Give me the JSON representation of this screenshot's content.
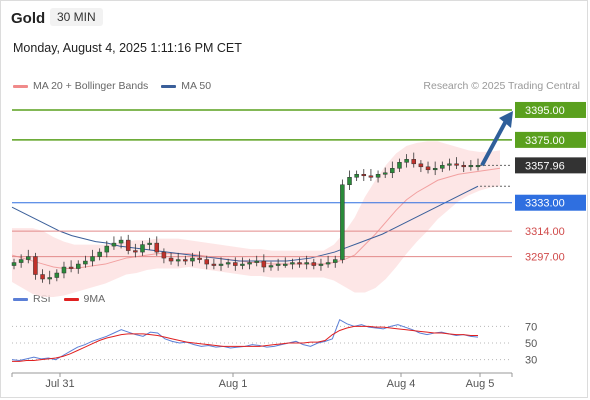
{
  "header": {
    "instrument": "Gold",
    "timeframe": "30 MIN",
    "datetime": "Monday, August 4, 2025 1:11:16 PM CET"
  },
  "legend_main": [
    {
      "label": "MA 20 + Bollinger Bands",
      "color": "#f08a8a"
    },
    {
      "label": "MA 50",
      "color": "#3a5f9a"
    }
  ],
  "legend_rsi": [
    {
      "label": "RSI",
      "color": "#5b7fd6"
    },
    {
      "label": "9MA",
      "color": "#e02020"
    }
  ],
  "credit": "Research © 2025 Trading Central",
  "colors": {
    "target": "#5aa01e",
    "pivot": "#2f6fe0",
    "support": "#d04a4a",
    "current": "#333333",
    "candle_up": "#2a8a3a",
    "candle_down": "#c0312b",
    "band_fill": "#fde2e2",
    "arrow": "#2f5f9a"
  },
  "chart_data": [
    {
      "type": "candlestick",
      "instrument": "Gold",
      "interval": "30 MIN",
      "ylim": [
        3280,
        3405
      ],
      "x_ticks": [
        "Jul 31",
        "Aug 1",
        "Aug 4",
        "Aug 5"
      ],
      "price_closes": [
        3293,
        3295,
        3297,
        3285,
        3282,
        3283,
        3286,
        3290,
        3289,
        3292,
        3294,
        3297,
        3300,
        3304,
        3306,
        3308,
        3301,
        3300,
        3305,
        3306,
        3300,
        3296,
        3294,
        3295,
        3294,
        3296,
        3295,
        3292,
        3291,
        3292,
        3293,
        3291,
        3292,
        3293,
        3294,
        3290,
        3291,
        3292,
        3292,
        3293,
        3292,
        3293,
        3291,
        3292,
        3293,
        3295,
        3345,
        3350,
        3352,
        3351,
        3350,
        3352,
        3353,
        3356,
        3360,
        3362,
        3359,
        3357,
        3355,
        3356,
        3358,
        3359,
        3358,
        3357,
        3358,
        3358
      ],
      "ma20": [
        3298,
        3296,
        3294,
        3292,
        3290,
        3289,
        3289,
        3290,
        3291,
        3292,
        3294,
        3296,
        3297,
        3298,
        3299,
        3299,
        3299,
        3299,
        3298,
        3297,
        3296,
        3295,
        3294,
        3293,
        3293,
        3292,
        3292,
        3292,
        3292,
        3292,
        3292,
        3293,
        3295,
        3298,
        3305,
        3312,
        3320,
        3328,
        3335,
        3340,
        3344,
        3348,
        3350,
        3352,
        3353,
        3354,
        3355,
        3356
      ],
      "ma50": [
        3330,
        3326,
        3322,
        3318,
        3314,
        3311,
        3309,
        3307,
        3306,
        3304,
        3303,
        3302,
        3301,
        3300,
        3299,
        3298,
        3297,
        3296,
        3295,
        3294,
        3294,
        3294,
        3294,
        3294,
        3295,
        3296,
        3298,
        3300,
        3303,
        3306,
        3309,
        3312,
        3316,
        3320,
        3324,
        3328,
        3332,
        3336,
        3340,
        3344
      ],
      "levels": [
        {
          "price": "3395.00",
          "value": 3395,
          "kind": "target"
        },
        {
          "price": "3375.00",
          "value": 3375,
          "kind": "target"
        },
        {
          "price": "3357.96",
          "value": 3357.96,
          "kind": "current"
        },
        {
          "price": "3333.00",
          "value": 3333,
          "kind": "pivot"
        },
        {
          "price": "3314.00",
          "value": 3314,
          "kind": "support"
        },
        {
          "price": "3297.00",
          "value": 3297,
          "kind": "support"
        }
      ],
      "legend": [
        "MA 20 + Bollinger Bands",
        "MA 50"
      ]
    },
    {
      "type": "line",
      "name": "RSI",
      "ylim": [
        20,
        80
      ],
      "y_ticks": [
        70,
        50,
        30
      ],
      "series": [
        {
          "name": "RSI",
          "values": [
            30,
            29,
            31,
            33,
            31,
            32,
            30,
            35,
            40,
            45,
            48,
            52,
            55,
            58,
            62,
            66,
            63,
            60,
            58,
            63,
            62,
            55,
            52,
            50,
            51,
            48,
            46,
            47,
            45,
            46,
            44,
            45,
            46,
            48,
            47,
            45,
            46,
            48,
            50,
            52,
            48,
            46,
            50,
            52,
            55,
            78,
            73,
            70,
            72,
            69,
            68,
            67,
            70,
            72,
            69,
            66,
            62,
            60,
            62,
            63,
            61,
            59,
            60,
            58,
            57
          ]
        },
        {
          "name": "9MA",
          "values": [
            28,
            28,
            29,
            29,
            30,
            31,
            32,
            34,
            37,
            41,
            45,
            49,
            53,
            56,
            58,
            60,
            61,
            61,
            61,
            60,
            59,
            57,
            55,
            53,
            51,
            50,
            49,
            48,
            47,
            46,
            46,
            46,
            46,
            46,
            46,
            47,
            48,
            49,
            50,
            50,
            50,
            51,
            51,
            53,
            60,
            65,
            68,
            70,
            70,
            70,
            69,
            69,
            68,
            67,
            66,
            65,
            64,
            63,
            62,
            62,
            61,
            60,
            60,
            59,
            59
          ]
        }
      ],
      "legend": [
        "RSI",
        "9MA"
      ]
    }
  ]
}
